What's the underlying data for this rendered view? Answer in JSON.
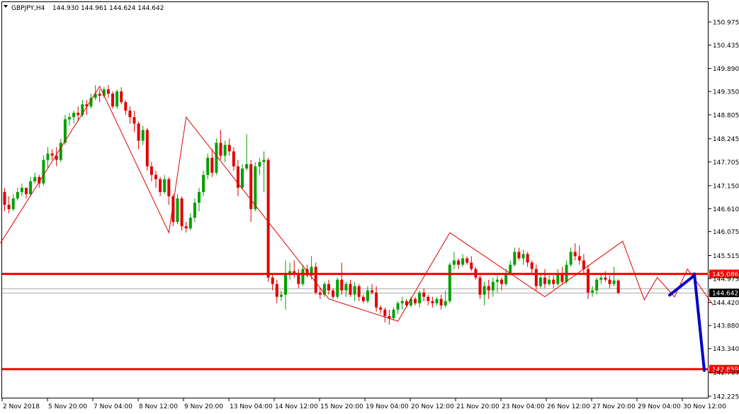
{
  "header": {
    "symbol": "GBPJPY,H4",
    "ohlc": "144.930 144.961 144.624 144.642"
  },
  "chart_data": {
    "type": "candlestick",
    "ylim": [
      142.225,
      151.25
    ],
    "y_ticks": [
      "150.975",
      "150.435",
      "149.890",
      "149.350",
      "148.805",
      "148.245",
      "147.705",
      "147.150",
      "146.610",
      "146.075",
      "145.515",
      "144.975",
      "144.420",
      "143.880",
      "143.340",
      "142.785",
      "142.225"
    ],
    "x_tick_labels": [
      "2 Nov 2018",
      "5 Nov 20:00",
      "7 Nov 04:00",
      "8 Nov 12:00",
      "9 Nov 20:00",
      "13 Nov 04:00",
      "14 Nov 12:00",
      "15 Nov 20:00",
      "19 Nov 04:00",
      "20 Nov 12:00",
      "21 Nov 20:00",
      "23 Nov 04:00",
      "26 Nov 12:00",
      "27 Nov 20:00",
      "29 Nov 04:00",
      "30 Nov 12:00"
    ],
    "candles": [
      [
        147.0,
        147.1,
        146.55,
        146.7
      ],
      [
        146.7,
        146.9,
        146.5,
        146.6
      ],
      [
        146.6,
        146.95,
        146.55,
        146.85
      ],
      [
        146.85,
        147.1,
        146.8,
        147.0
      ],
      [
        147.0,
        147.2,
        146.9,
        147.1
      ],
      [
        147.1,
        147.05,
        146.85,
        146.95
      ],
      [
        146.95,
        147.35,
        146.9,
        147.25
      ],
      [
        147.25,
        147.45,
        147.2,
        147.35
      ],
      [
        147.35,
        147.4,
        147.1,
        147.2
      ],
      [
        147.2,
        147.85,
        147.15,
        147.75
      ],
      [
        147.75,
        148.05,
        147.55,
        147.9
      ],
      [
        147.9,
        148.0,
        147.75,
        147.85
      ],
      [
        147.85,
        148.05,
        147.6,
        147.75
      ],
      [
        147.75,
        148.25,
        147.7,
        148.15
      ],
      [
        148.15,
        148.8,
        148.1,
        148.7
      ],
      [
        148.7,
        148.85,
        148.55,
        148.75
      ],
      [
        148.75,
        148.9,
        148.6,
        148.85
      ],
      [
        148.85,
        149.0,
        148.65,
        148.8
      ],
      [
        148.8,
        149.15,
        148.75,
        149.05
      ],
      [
        149.05,
        149.15,
        148.8,
        149.0
      ],
      [
        149.0,
        149.3,
        148.95,
        149.2
      ],
      [
        149.2,
        149.5,
        149.15,
        149.3
      ],
      [
        149.3,
        149.4,
        149.1,
        149.25
      ],
      [
        149.25,
        149.45,
        149.2,
        149.4
      ],
      [
        149.4,
        149.5,
        149.2,
        149.3
      ],
      [
        149.3,
        149.35,
        148.95,
        149.0
      ],
      [
        149.0,
        149.4,
        148.95,
        149.35
      ],
      [
        149.35,
        149.45,
        149.05,
        149.1
      ],
      [
        149.1,
        149.15,
        148.8,
        148.9
      ],
      [
        148.9,
        149.0,
        148.6,
        148.75
      ],
      [
        148.75,
        148.9,
        148.4,
        148.6
      ],
      [
        148.6,
        148.65,
        148.0,
        148.2
      ],
      [
        148.2,
        148.55,
        148.1,
        148.45
      ],
      [
        148.45,
        148.5,
        147.5,
        147.6
      ],
      [
        147.6,
        147.7,
        147.25,
        147.4
      ],
      [
        147.4,
        147.5,
        147.1,
        147.3
      ],
      [
        147.3,
        147.35,
        146.9,
        147.0
      ],
      [
        147.0,
        147.4,
        146.95,
        147.3
      ],
      [
        147.3,
        147.35,
        146.7,
        146.9
      ],
      [
        146.9,
        146.95,
        146.2,
        146.3
      ],
      [
        146.3,
        146.95,
        146.25,
        146.85
      ],
      [
        146.85,
        146.9,
        146.1,
        146.2
      ],
      [
        146.2,
        146.3,
        146.05,
        146.15
      ],
      [
        146.15,
        146.5,
        146.1,
        146.4
      ],
      [
        146.4,
        146.85,
        146.3,
        146.75
      ],
      [
        146.75,
        147.1,
        146.55,
        147.0
      ],
      [
        147.0,
        147.5,
        146.9,
        147.4
      ],
      [
        147.4,
        147.9,
        147.3,
        147.8
      ],
      [
        147.8,
        148.0,
        147.35,
        147.45
      ],
      [
        147.45,
        148.25,
        147.4,
        148.15
      ],
      [
        148.15,
        148.45,
        147.75,
        147.85
      ],
      [
        147.85,
        148.2,
        147.7,
        148.1
      ],
      [
        148.1,
        148.25,
        147.85,
        147.95
      ],
      [
        147.95,
        148.05,
        147.5,
        147.6
      ],
      [
        147.6,
        147.75,
        146.9,
        147.1
      ],
      [
        147.1,
        147.65,
        147.05,
        147.55
      ],
      [
        147.55,
        148.35,
        147.5,
        147.65
      ],
      [
        147.65,
        147.75,
        146.3,
        146.6
      ],
      [
        146.6,
        147.7,
        146.55,
        147.6
      ],
      [
        147.6,
        147.8,
        147.4,
        147.7
      ],
      [
        147.7,
        147.95,
        147.0,
        147.75
      ],
      [
        147.75,
        147.8,
        144.9,
        145.0
      ],
      [
        145.0,
        145.1,
        144.7,
        144.85
      ],
      [
        144.85,
        144.95,
        144.4,
        144.55
      ],
      [
        144.55,
        144.7,
        144.45,
        144.6
      ],
      [
        144.6,
        145.4,
        144.25,
        145.1
      ],
      [
        145.1,
        145.35,
        144.95,
        145.15
      ],
      [
        145.15,
        145.4,
        145.0,
        145.1
      ],
      [
        145.1,
        145.2,
        144.75,
        144.85
      ],
      [
        144.85,
        145.3,
        144.8,
        145.2
      ],
      [
        145.2,
        145.3,
        145.0,
        145.05
      ],
      [
        145.05,
        145.5,
        144.95,
        145.25
      ],
      [
        145.25,
        145.35,
        144.6,
        144.65
      ],
      [
        144.65,
        144.75,
        144.5,
        144.6
      ],
      [
        144.6,
        144.9,
        144.55,
        144.85
      ],
      [
        144.85,
        144.95,
        144.6,
        144.7
      ],
      [
        144.7,
        144.75,
        144.5,
        144.55
      ],
      [
        144.55,
        145.0,
        144.5,
        144.95
      ],
      [
        144.95,
        145.35,
        144.6,
        144.7
      ],
      [
        144.7,
        144.9,
        144.55,
        144.85
      ],
      [
        144.85,
        144.95,
        144.55,
        144.6
      ],
      [
        144.6,
        144.9,
        144.45,
        144.8
      ],
      [
        144.8,
        144.85,
        144.45,
        144.55
      ],
      [
        144.55,
        144.6,
        144.4,
        144.45
      ],
      [
        144.45,
        144.8,
        144.4,
        144.7
      ],
      [
        144.7,
        144.85,
        144.6,
        144.65
      ],
      [
        144.65,
        144.8,
        144.2,
        144.3
      ],
      [
        144.3,
        144.35,
        144.15,
        144.25
      ],
      [
        144.25,
        144.3,
        143.95,
        144.1
      ],
      [
        144.1,
        144.25,
        143.9,
        144.05
      ],
      [
        144.05,
        144.3,
        144.0,
        144.25
      ],
      [
        144.25,
        144.45,
        144.15,
        144.4
      ],
      [
        144.4,
        144.55,
        144.25,
        144.45
      ],
      [
        144.45,
        144.5,
        144.3,
        144.35
      ],
      [
        144.35,
        144.55,
        144.3,
        144.5
      ],
      [
        144.5,
        144.55,
        144.35,
        144.4
      ],
      [
        144.4,
        144.7,
        144.3,
        144.65
      ],
      [
        144.65,
        144.75,
        144.45,
        144.55
      ],
      [
        144.55,
        144.6,
        144.35,
        144.45
      ],
      [
        144.45,
        144.55,
        144.3,
        144.4
      ],
      [
        144.4,
        144.55,
        144.35,
        144.5
      ],
      [
        144.5,
        144.6,
        144.25,
        144.35
      ],
      [
        144.35,
        144.7,
        144.3,
        144.45
      ],
      [
        144.45,
        145.35,
        144.4,
        145.3
      ],
      [
        145.3,
        145.6,
        145.2,
        145.4
      ],
      [
        145.4,
        145.45,
        145.2,
        145.3
      ],
      [
        145.3,
        145.55,
        145.25,
        145.45
      ],
      [
        145.45,
        145.5,
        145.3,
        145.35
      ],
      [
        145.35,
        145.5,
        145.15,
        145.2
      ],
      [
        145.2,
        145.25,
        144.95,
        145.0
      ],
      [
        145.0,
        145.05,
        144.5,
        144.6
      ],
      [
        144.6,
        144.9,
        144.35,
        144.8
      ],
      [
        144.8,
        144.95,
        144.5,
        144.7
      ],
      [
        144.7,
        145.0,
        144.55,
        144.9
      ],
      [
        144.9,
        145.05,
        144.65,
        144.95
      ],
      [
        144.95,
        145.0,
        144.7,
        144.85
      ],
      [
        144.85,
        145.2,
        144.8,
        145.1
      ],
      [
        145.1,
        145.4,
        145.05,
        145.3
      ],
      [
        145.3,
        145.7,
        145.25,
        145.6
      ],
      [
        145.6,
        145.7,
        145.4,
        145.45
      ],
      [
        145.45,
        145.65,
        145.3,
        145.55
      ],
      [
        145.55,
        145.6,
        145.25,
        145.35
      ],
      [
        145.35,
        145.4,
        145.1,
        145.2
      ],
      [
        145.2,
        145.3,
        144.7,
        144.8
      ],
      [
        144.8,
        145.1,
        144.75,
        145.0
      ],
      [
        145.0,
        145.2,
        144.75,
        144.85
      ],
      [
        144.85,
        145.05,
        144.8,
        144.95
      ],
      [
        144.95,
        145.05,
        144.75,
        144.85
      ],
      [
        144.85,
        145.2,
        144.8,
        145.1
      ],
      [
        145.1,
        145.25,
        144.85,
        144.9
      ],
      [
        144.9,
        145.4,
        144.85,
        145.3
      ],
      [
        145.3,
        145.7,
        145.25,
        145.6
      ],
      [
        145.6,
        145.8,
        145.4,
        145.5
      ],
      [
        145.5,
        145.75,
        145.3,
        145.4
      ],
      [
        145.4,
        145.55,
        145.1,
        145.2
      ],
      [
        145.2,
        145.3,
        144.5,
        144.65
      ],
      [
        144.65,
        144.8,
        144.55,
        144.7
      ],
      [
        144.7,
        145.0,
        144.6,
        144.95
      ],
      [
        144.95,
        145.1,
        144.85,
        145.0
      ],
      [
        145.0,
        145.15,
        144.9,
        144.95
      ],
      [
        144.95,
        145.05,
        144.75,
        144.85
      ],
      [
        144.85,
        145.25,
        144.8,
        144.93
      ],
      [
        144.93,
        144.96,
        144.62,
        144.64
      ]
    ],
    "zigzag": [
      [
        -1,
        145.8
      ],
      [
        22,
        149.47
      ],
      [
        38,
        146.05
      ],
      [
        42,
        148.75
      ],
      [
        75,
        144.5
      ],
      [
        91,
        143.98
      ],
      [
        103,
        146.05
      ],
      [
        125,
        144.55
      ],
      [
        143,
        145.85
      ],
      [
        148,
        144.48
      ],
      [
        151,
        145.0
      ],
      [
        155,
        144.55
      ],
      [
        158,
        145.2
      ],
      [
        164,
        144.35
      ]
    ],
    "horizontal_lines": [
      {
        "price": 145.086,
        "label": "145.086",
        "color": "#ff0000"
      },
      {
        "price": 142.859,
        "label": "142.859",
        "color": "#ff0000"
      }
    ],
    "thin_lines": [
      144.74,
      144.64
    ],
    "current_price": {
      "value": 144.642,
      "label": "144.642"
    },
    "projection": {
      "color": "#0000cc",
      "points": [
        [
          144.59,
          145.05
        ],
        [
          145.086,
          142.83
        ]
      ]
    },
    "colors": {
      "bull": "#00a000",
      "bear": "#e00000",
      "zigzag": "#e00000"
    }
  }
}
